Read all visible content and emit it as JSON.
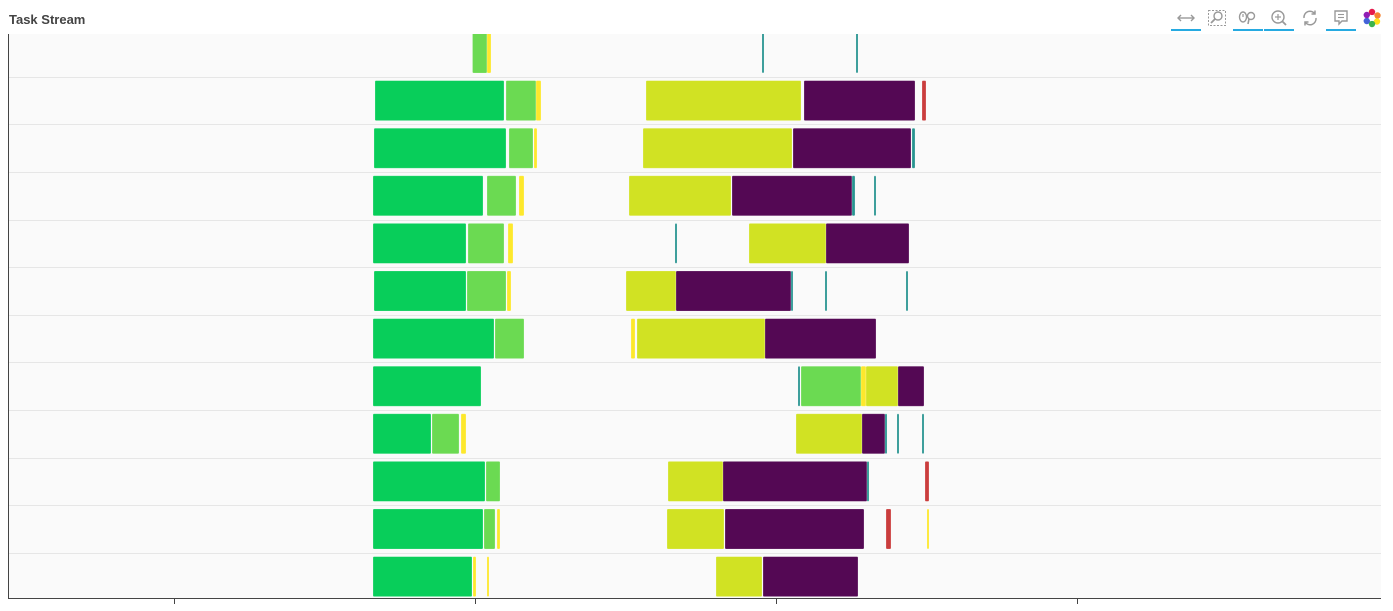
{
  "title": "Task Stream",
  "toolbar": {
    "tools": [
      {
        "name": "xpan-tool",
        "icon": "x-pan-icon",
        "active": true
      },
      {
        "name": "box-zoom-tool",
        "icon": "box-zoom-icon",
        "active": false
      },
      {
        "name": "wheel-zoom-tool",
        "icon": "wheel-zoom-icon",
        "active": true
      },
      {
        "name": "zoom-in-tool",
        "icon": "zoom-in-icon",
        "active": true
      },
      {
        "name": "reset-tool",
        "icon": "reset-icon",
        "active": false
      },
      {
        "name": "hover-tool",
        "icon": "hover-tooltip-icon",
        "active": true
      },
      {
        "name": "bokeh-logo",
        "icon": "bokeh-logo-icon",
        "active": false
      }
    ]
  },
  "colors": {
    "green": "#00cc55",
    "lightgreen": "#66d94c",
    "yellow": "#fde725",
    "lime": "#d0e11c",
    "purple": "#4e004e",
    "teal": "#21918c",
    "red": "#c83737",
    "background": "#fafafa",
    "grid": "#e6e6e6"
  },
  "chart_data": {
    "type": "bar",
    "orientation": "horizontal",
    "grid": true,
    "rows": 12,
    "x_ticks": [
      "",
      "",
      "",
      ""
    ],
    "tasks": [
      {
        "row": 0,
        "start": 463.5,
        "end": 478,
        "color": "lightgreen"
      },
      {
        "row": 0,
        "start": 478,
        "end": 482,
        "color": "yellow"
      },
      {
        "row": 0,
        "start": 753,
        "end": 755,
        "color": "teal"
      },
      {
        "row": 0,
        "start": 847,
        "end": 849,
        "color": "teal"
      },
      {
        "row": 1,
        "start": 366,
        "end": 495,
        "color": "green"
      },
      {
        "row": 1,
        "start": 497,
        "end": 527,
        "color": "lightgreen"
      },
      {
        "row": 1,
        "start": 527,
        "end": 532,
        "color": "yellow"
      },
      {
        "row": 1,
        "start": 637,
        "end": 792,
        "color": "lime"
      },
      {
        "row": 1,
        "start": 795,
        "end": 906,
        "color": "purple"
      },
      {
        "row": 1,
        "start": 913,
        "end": 917,
        "color": "red"
      },
      {
        "row": 2,
        "start": 365,
        "end": 497,
        "color": "green"
      },
      {
        "row": 2,
        "start": 500,
        "end": 524,
        "color": "lightgreen"
      },
      {
        "row": 2,
        "start": 525,
        "end": 528,
        "color": "yellow"
      },
      {
        "row": 2,
        "start": 634,
        "end": 783,
        "color": "lime"
      },
      {
        "row": 2,
        "start": 784,
        "end": 902,
        "color": "purple"
      },
      {
        "row": 2,
        "start": 903,
        "end": 906,
        "color": "teal"
      },
      {
        "row": 3,
        "start": 364,
        "end": 474,
        "color": "green"
      },
      {
        "row": 3,
        "start": 478,
        "end": 507,
        "color": "lightgreen"
      },
      {
        "row": 3,
        "start": 510,
        "end": 515,
        "color": "yellow"
      },
      {
        "row": 3,
        "start": 620,
        "end": 722,
        "color": "lime"
      },
      {
        "row": 3,
        "start": 723,
        "end": 843,
        "color": "purple"
      },
      {
        "row": 3,
        "start": 843,
        "end": 846,
        "color": "teal"
      },
      {
        "row": 3,
        "start": 865,
        "end": 867,
        "color": "teal"
      },
      {
        "row": 4,
        "start": 364,
        "end": 457,
        "color": "green"
      },
      {
        "row": 4,
        "start": 459,
        "end": 495,
        "color": "lightgreen"
      },
      {
        "row": 4,
        "start": 499,
        "end": 504,
        "color": "yellow"
      },
      {
        "row": 4,
        "start": 666,
        "end": 668,
        "color": "teal"
      },
      {
        "row": 4,
        "start": 740,
        "end": 817,
        "color": "lime"
      },
      {
        "row": 4,
        "start": 817,
        "end": 900,
        "color": "purple"
      },
      {
        "row": 5,
        "start": 365,
        "end": 457,
        "color": "green"
      },
      {
        "row": 5,
        "start": 458,
        "end": 497,
        "color": "lightgreen"
      },
      {
        "row": 5,
        "start": 498,
        "end": 502,
        "color": "yellow"
      },
      {
        "row": 5,
        "start": 617,
        "end": 667,
        "color": "lime"
      },
      {
        "row": 5,
        "start": 667,
        "end": 782,
        "color": "purple"
      },
      {
        "row": 5,
        "start": 782,
        "end": 784,
        "color": "teal"
      },
      {
        "row": 5,
        "start": 816,
        "end": 818,
        "color": "teal"
      },
      {
        "row": 5,
        "start": 897,
        "end": 899,
        "color": "teal"
      },
      {
        "row": 6,
        "start": 364,
        "end": 485,
        "color": "green"
      },
      {
        "row": 6,
        "start": 486,
        "end": 515,
        "color": "lightgreen"
      },
      {
        "row": 6,
        "start": 622,
        "end": 626,
        "color": "yellow"
      },
      {
        "row": 6,
        "start": 628,
        "end": 756,
        "color": "lime"
      },
      {
        "row": 6,
        "start": 756,
        "end": 867,
        "color": "purple"
      },
      {
        "row": 7,
        "start": 364,
        "end": 472,
        "color": "green"
      },
      {
        "row": 7,
        "start": 789,
        "end": 791,
        "color": "teal"
      },
      {
        "row": 7,
        "start": 792,
        "end": 852,
        "color": "lightgreen"
      },
      {
        "row": 7,
        "start": 852,
        "end": 857,
        "color": "yellow"
      },
      {
        "row": 7,
        "start": 857,
        "end": 889,
        "color": "lime"
      },
      {
        "row": 7,
        "start": 889,
        "end": 915,
        "color": "purple"
      },
      {
        "row": 8,
        "start": 364,
        "end": 422,
        "color": "green"
      },
      {
        "row": 8,
        "start": 423,
        "end": 450,
        "color": "lightgreen"
      },
      {
        "row": 8,
        "start": 452,
        "end": 457,
        "color": "yellow"
      },
      {
        "row": 8,
        "start": 787,
        "end": 853,
        "color": "lime"
      },
      {
        "row": 8,
        "start": 853,
        "end": 876,
        "color": "purple"
      },
      {
        "row": 8,
        "start": 876,
        "end": 878,
        "color": "teal"
      },
      {
        "row": 8,
        "start": 888,
        "end": 890,
        "color": "teal"
      },
      {
        "row": 8,
        "start": 913,
        "end": 915,
        "color": "teal"
      },
      {
        "row": 9,
        "start": 364,
        "end": 476,
        "color": "green"
      },
      {
        "row": 9,
        "start": 477,
        "end": 491,
        "color": "lightgreen"
      },
      {
        "row": 9,
        "start": 659,
        "end": 714,
        "color": "lime"
      },
      {
        "row": 9,
        "start": 714,
        "end": 858,
        "color": "purple"
      },
      {
        "row": 9,
        "start": 858,
        "end": 860,
        "color": "teal"
      },
      {
        "row": 9,
        "start": 916,
        "end": 920,
        "color": "red"
      },
      {
        "row": 10,
        "start": 364,
        "end": 474,
        "color": "green"
      },
      {
        "row": 10,
        "start": 475,
        "end": 486,
        "color": "lightgreen"
      },
      {
        "row": 10,
        "start": 488,
        "end": 491,
        "color": "yellow"
      },
      {
        "row": 10,
        "start": 658,
        "end": 715,
        "color": "lime"
      },
      {
        "row": 10,
        "start": 716,
        "end": 855,
        "color": "purple"
      },
      {
        "row": 10,
        "start": 877,
        "end": 882,
        "color": "red"
      },
      {
        "row": 10,
        "start": 918,
        "end": 920,
        "color": "yellow"
      },
      {
        "row": 11,
        "start": 364,
        "end": 463,
        "color": "green"
      },
      {
        "row": 11,
        "start": 464,
        "end": 467,
        "color": "yellow"
      },
      {
        "row": 11,
        "start": 478,
        "end": 480,
        "color": "yellow"
      },
      {
        "row": 11,
        "start": 707,
        "end": 753,
        "color": "lime"
      },
      {
        "row": 11,
        "start": 754,
        "end": 849,
        "color": "purple"
      }
    ]
  }
}
